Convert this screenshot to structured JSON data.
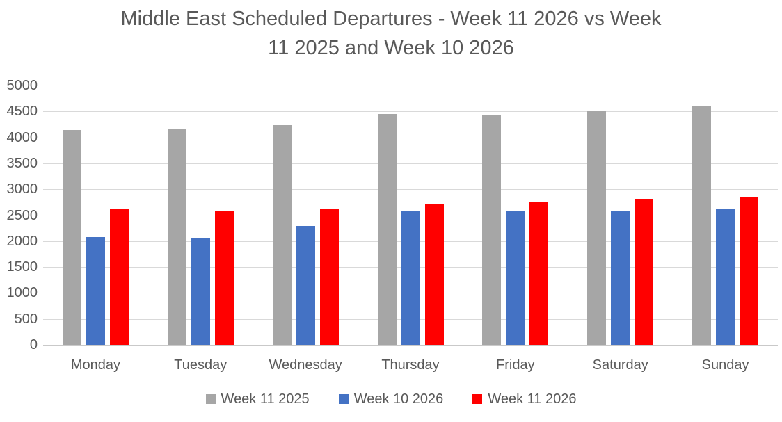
{
  "title": {
    "line1": "Middle East Scheduled Departures - Week 11 2026 vs Week",
    "line2": "11 2025 and Week 10 2026"
  },
  "chart_data": {
    "type": "bar",
    "title": "Middle East Scheduled Departures - Week 11 2026 vs Week 11 2025 and Week 10 2026",
    "categories": [
      "Monday",
      "Tuesday",
      "Wednesday",
      "Thursday",
      "Friday",
      "Saturday",
      "Sunday"
    ],
    "series": [
      {
        "name": "Week 11 2025",
        "color": "#A6A6A6",
        "values": [
          4140,
          4170,
          4240,
          4450,
          4440,
          4510,
          4610
        ]
      },
      {
        "name": "Week 10 2026",
        "color": "#4472C4",
        "values": [
          2080,
          2050,
          2290,
          2570,
          2590,
          2580,
          2610
        ]
      },
      {
        "name": "Week 11 2026",
        "color": "#FF0000",
        "values": [
          2620,
          2590,
          2610,
          2710,
          2750,
          2820,
          2840
        ]
      }
    ],
    "xlabel": "",
    "ylabel": "",
    "ylim": [
      0,
      5000
    ],
    "ytick_step": 500,
    "ytick_labels": [
      "0",
      "500",
      "1000",
      "1500",
      "2000",
      "2500",
      "3000",
      "3500",
      "4000",
      "4500",
      "5000"
    ],
    "grid": true,
    "gridline_color": "#D9D9D9",
    "axis_line_color": "#C9C9C9",
    "text_color": "#595959",
    "legend_position": "bottom"
  }
}
